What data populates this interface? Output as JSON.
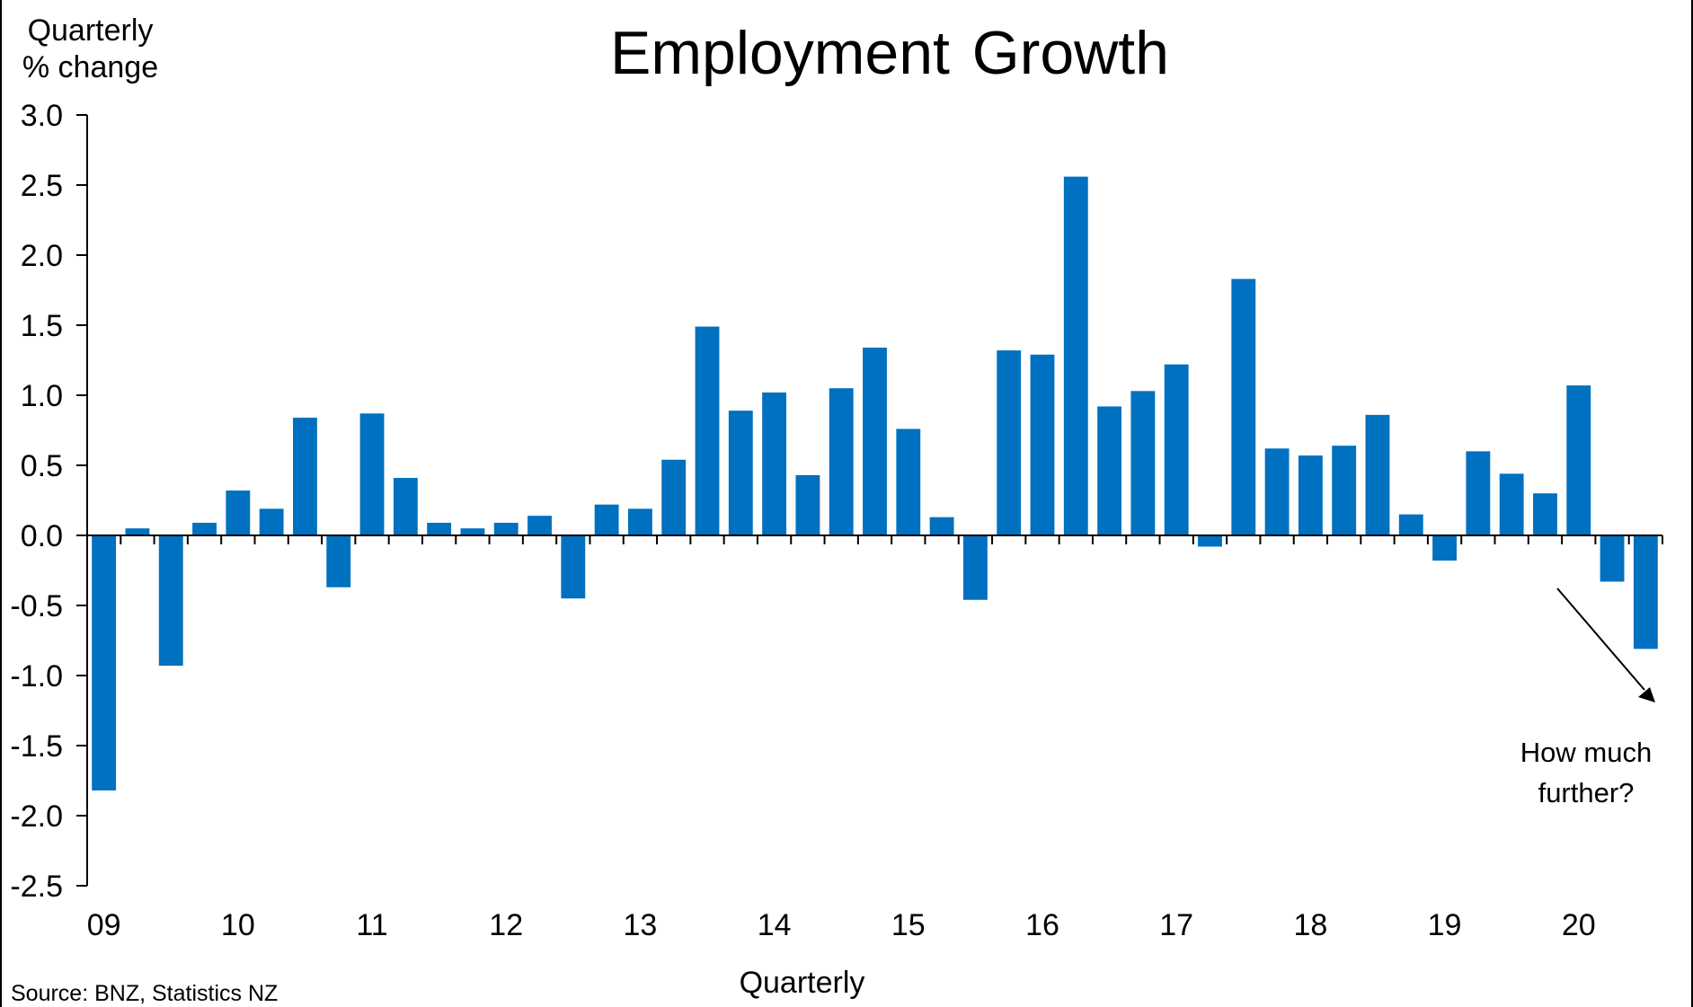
{
  "title": "Employment Growth",
  "ylabel_line1": "Quarterly",
  "ylabel_line2": "% change",
  "xlabel": "Quarterly",
  "source": "Source:  BNZ,  Statistics NZ",
  "annotation_line1": "How much",
  "annotation_line2": "further?",
  "colors": {
    "bar": "#0070C0",
    "axis": "#000000"
  },
  "chart_data": {
    "type": "bar",
    "title": "Employment Growth",
    "xlabel": "Quarterly",
    "ylabel": "Quarterly % change",
    "ylim": [
      -2.5,
      3.0
    ],
    "yticks": [
      "3.0",
      "2.5",
      "2.0",
      "1.5",
      "1.0",
      "0.5",
      "0.0",
      "-0.5",
      "-1.0",
      "-1.5",
      "-2.0",
      "-2.5"
    ],
    "x_tick_labels": [
      "09",
      "10",
      "11",
      "12",
      "13",
      "14",
      "15",
      "16",
      "17",
      "18",
      "19",
      "20"
    ],
    "grid": false,
    "legend": "none",
    "series": [
      {
        "values": [
          -1.82,
          0.05,
          -0.93,
          0.09,
          0.32,
          0.19,
          0.84,
          -0.37,
          0.87,
          0.41,
          0.09,
          0.05,
          0.09,
          0.14,
          -0.45,
          0.22,
          0.19,
          0.54,
          1.49,
          0.89,
          1.02,
          0.43,
          1.05,
          1.34,
          0.76,
          0.13,
          -0.46,
          1.32,
          1.29,
          2.56,
          0.92,
          1.03,
          1.22,
          -0.08,
          1.83,
          0.62,
          0.57,
          0.64,
          0.86,
          0.15,
          -0.18,
          0.6,
          0.44,
          0.3,
          1.07,
          -0.33,
          -0.81
        ]
      }
    ]
  }
}
